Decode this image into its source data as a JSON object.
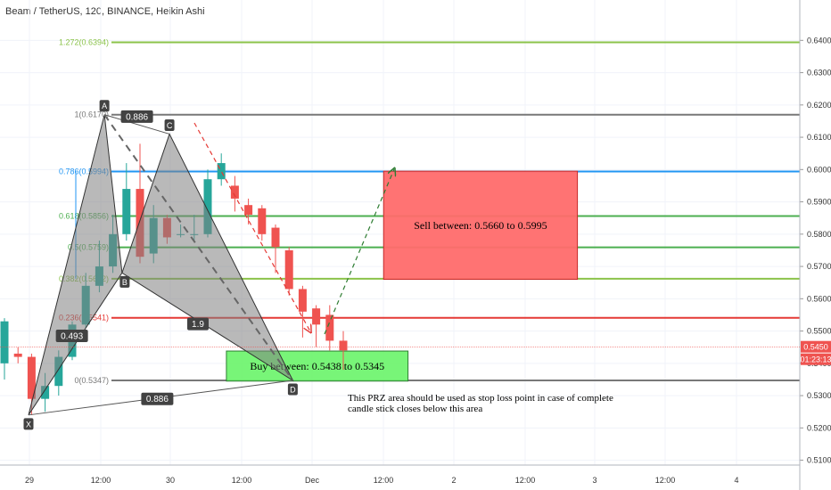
{
  "header": {
    "title": "Beam / TetherUS, 120, BINANCE, Heikin Ashi"
  },
  "chart_data": {
    "type": "candlestick",
    "title": "Beam / TetherUS, 120, BINANCE, Heikin Ashi",
    "y_axis": {
      "ticks": [
        "0.6400",
        "0.6300",
        "0.6200",
        "0.6100",
        "0.6000",
        "0.5900",
        "0.5800",
        "0.5700",
        "0.5600",
        "0.5500",
        "0.5400",
        "0.5300",
        "0.5200",
        "0.5100"
      ],
      "ylim": [
        0.5085,
        0.6525
      ],
      "current_price": "0.5450",
      "countdown": "01:23:13"
    },
    "x_axis": {
      "ticks": [
        "29",
        "12:00",
        "30",
        "12:00",
        "Dec",
        "12:00",
        "2",
        "12:00",
        "3",
        "12:00",
        "4"
      ]
    },
    "fib_levels": [
      {
        "label": "1.272(0.6394)",
        "value": 0.6394,
        "color": "#8bc34a"
      },
      {
        "label": "1(0.6170)",
        "value": 0.617,
        "color": "#787878"
      },
      {
        "label": "0.786(0.5994)",
        "value": 0.5994,
        "color": "#2196f3"
      },
      {
        "label": "0.618(0.5856)",
        "value": 0.5856,
        "color": "#4caf50"
      },
      {
        "label": "0.5(0.5759)",
        "value": 0.5759,
        "color": "#4caf50"
      },
      {
        "label": "0.382(0.5662)",
        "value": 0.5662,
        "color": "#8bc34a"
      },
      {
        "label": "0.236(0.5541)",
        "value": 0.5541,
        "color": "#e53935"
      },
      {
        "label": "0(0.5347)",
        "value": 0.5347,
        "color": "#787878"
      }
    ],
    "pattern_points": [
      {
        "label": "X",
        "t": 0.0,
        "price": 0.524
      },
      {
        "label": "A",
        "t": 5.6,
        "price": 0.617
      },
      {
        "label": "B",
        "t": 6.9,
        "price": 0.568
      },
      {
        "label": "C",
        "t": 10.4,
        "price": 0.611
      },
      {
        "label": "D",
        "t": 19.5,
        "price": 0.5347
      }
    ],
    "ratios": [
      {
        "label": "0.886",
        "t": 8.0,
        "price": 0.6164
      },
      {
        "label": "0.493",
        "t": 3.2,
        "price": 0.5485
      },
      {
        "label": "1.9",
        "t": 12.5,
        "price": 0.5522
      },
      {
        "label": "0.886",
        "t": 9.5,
        "price": 0.529
      }
    ],
    "sell_zone": {
      "label": "Sell between: 0.5660 to 0.5995",
      "low": 0.566,
      "high": 0.5995,
      "t_start": 26.2,
      "t_end": 40.5
    },
    "buy_zone": {
      "label": "Buy between: 0.5438 to 0.5345",
      "low": 0.5345,
      "high": 0.5438,
      "t_start": 14.6,
      "t_end": 28.0
    },
    "note": "This PRZ area should be used as stop loss point in case of complete candle stick closes below this area",
    "candles": [
      {
        "o": 0.54,
        "c": 0.553,
        "h": 0.554,
        "l": 0.535
      },
      {
        "o": 0.543,
        "c": 0.542,
        "h": 0.545,
        "l": 0.54
      },
      {
        "o": 0.542,
        "c": 0.529,
        "h": 0.543,
        "l": 0.524
      },
      {
        "o": 0.529,
        "c": 0.533,
        "h": 0.537,
        "l": 0.525
      },
      {
        "o": 0.533,
        "c": 0.542,
        "h": 0.544,
        "l": 0.53
      },
      {
        "o": 0.542,
        "c": 0.552,
        "h": 0.553,
        "l": 0.541
      },
      {
        "o": 0.552,
        "c": 0.564,
        "h": 0.568,
        "l": 0.551
      },
      {
        "o": 0.564,
        "c": 0.57,
        "h": 0.578,
        "l": 0.562
      },
      {
        "o": 0.57,
        "c": 0.58,
        "h": 0.586,
        "l": 0.568
      },
      {
        "o": 0.58,
        "c": 0.594,
        "h": 0.602,
        "l": 0.578
      },
      {
        "o": 0.594,
        "c": 0.573,
        "h": 0.608,
        "l": 0.571
      },
      {
        "o": 0.574,
        "c": 0.585,
        "h": 0.589,
        "l": 0.571
      },
      {
        "o": 0.585,
        "c": 0.579,
        "h": 0.586,
        "l": 0.577
      },
      {
        "o": 0.58,
        "c": 0.58,
        "h": 0.583,
        "l": 0.579
      },
      {
        "o": 0.58,
        "c": 0.58,
        "h": 0.586,
        "l": 0.578
      },
      {
        "o": 0.58,
        "c": 0.597,
        "h": 0.6,
        "l": 0.579
      },
      {
        "o": 0.597,
        "c": 0.602,
        "h": 0.605,
        "l": 0.595
      },
      {
        "o": 0.595,
        "c": 0.591,
        "h": 0.598,
        "l": 0.587
      },
      {
        "o": 0.589,
        "c": 0.586,
        "h": 0.591,
        "l": 0.583
      },
      {
        "o": 0.588,
        "c": 0.58,
        "h": 0.589,
        "l": 0.578
      },
      {
        "o": 0.582,
        "c": 0.576,
        "h": 0.583,
        "l": 0.568
      },
      {
        "o": 0.575,
        "c": 0.563,
        "h": 0.576,
        "l": 0.561
      },
      {
        "o": 0.563,
        "c": 0.556,
        "h": 0.564,
        "l": 0.548
      },
      {
        "o": 0.557,
        "c": 0.552,
        "h": 0.558,
        "l": 0.545
      },
      {
        "o": 0.555,
        "c": 0.547,
        "h": 0.558,
        "l": 0.544
      },
      {
        "o": 0.547,
        "c": 0.544,
        "h": 0.55,
        "l": 0.538
      }
    ]
  },
  "colors": {
    "up": "#26a69a",
    "down": "#ef5350",
    "grid": "#f0f3fa",
    "pattern_fill": "#808080",
    "sell_zone": "#ff6b6b",
    "buy_zone": "#69f469"
  }
}
